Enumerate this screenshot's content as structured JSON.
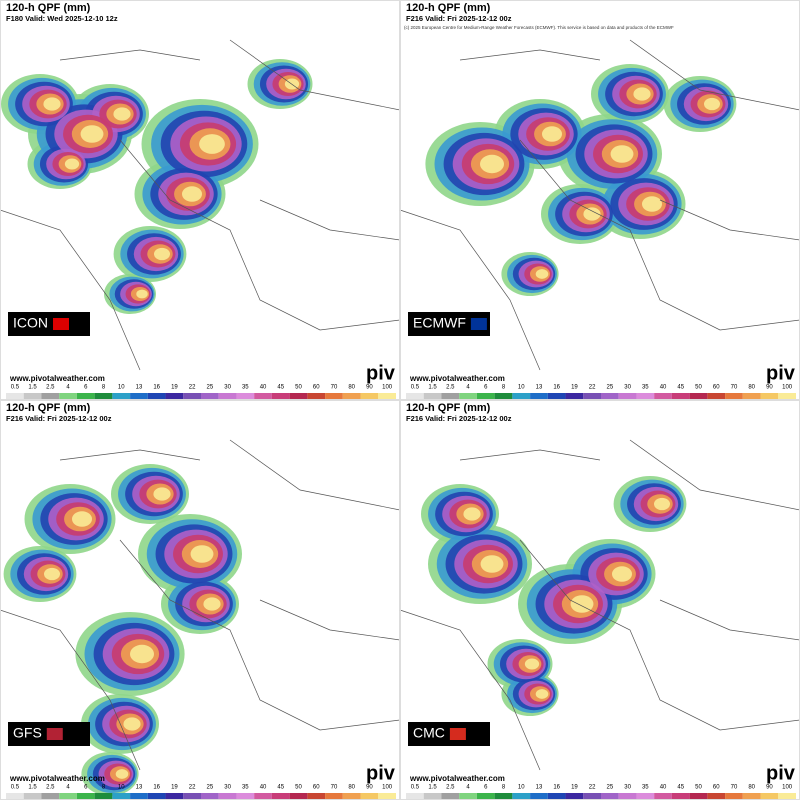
{
  "panels": [
    {
      "title": "120-h QPF (mm)",
      "valid": "F180 Valid: Wed 2025-12-10 12z",
      "model": "ICON",
      "website": "www.pivotalweather.com",
      "logo": "piv"
    },
    {
      "title": "120-h QPF (mm)",
      "valid": "F216 Valid: Fri 2025-12-12 00z",
      "notice": "(c) 2025 European Centre for Medium-Range Weather Forecasts (ECMWF). This service is based on data and products of the ECMWF",
      "model": "ECMWF",
      "website": "www.pivotalweather.com",
      "logo": "piv"
    },
    {
      "title": "120-h QPF (mm)",
      "valid": "F216 Valid: Fri 2025-12-12 00z",
      "model": "GFS",
      "website": "www.pivotalweather.com",
      "logo": "piv"
    },
    {
      "title": "120-h QPF (mm)",
      "valid": "F216 Valid: Fri 2025-12-12 00z",
      "model": "CMC",
      "website": "www.pivotalweather.com",
      "logo": "piv"
    }
  ],
  "colorbar": {
    "labels": [
      0.5,
      1.5,
      2.5,
      4,
      6,
      8,
      10,
      13,
      16,
      19,
      22,
      25,
      30,
      35,
      40,
      45,
      50,
      60,
      70,
      80,
      90,
      100
    ],
    "colors": [
      "#e6e6e6",
      "#c8c8c8",
      "#a0a0a0",
      "#7fd47f",
      "#3cb44b",
      "#1e8c3c",
      "#2ca0c8",
      "#1e6ec8",
      "#1e46b4",
      "#3c28a0",
      "#7850b4",
      "#a064c8",
      "#c878d2",
      "#dc8cdc",
      "#d25aa0",
      "#c83c78",
      "#b42850",
      "#c84632",
      "#e6783c",
      "#f0a050",
      "#f5c864",
      "#faeb96"
    ]
  }
}
